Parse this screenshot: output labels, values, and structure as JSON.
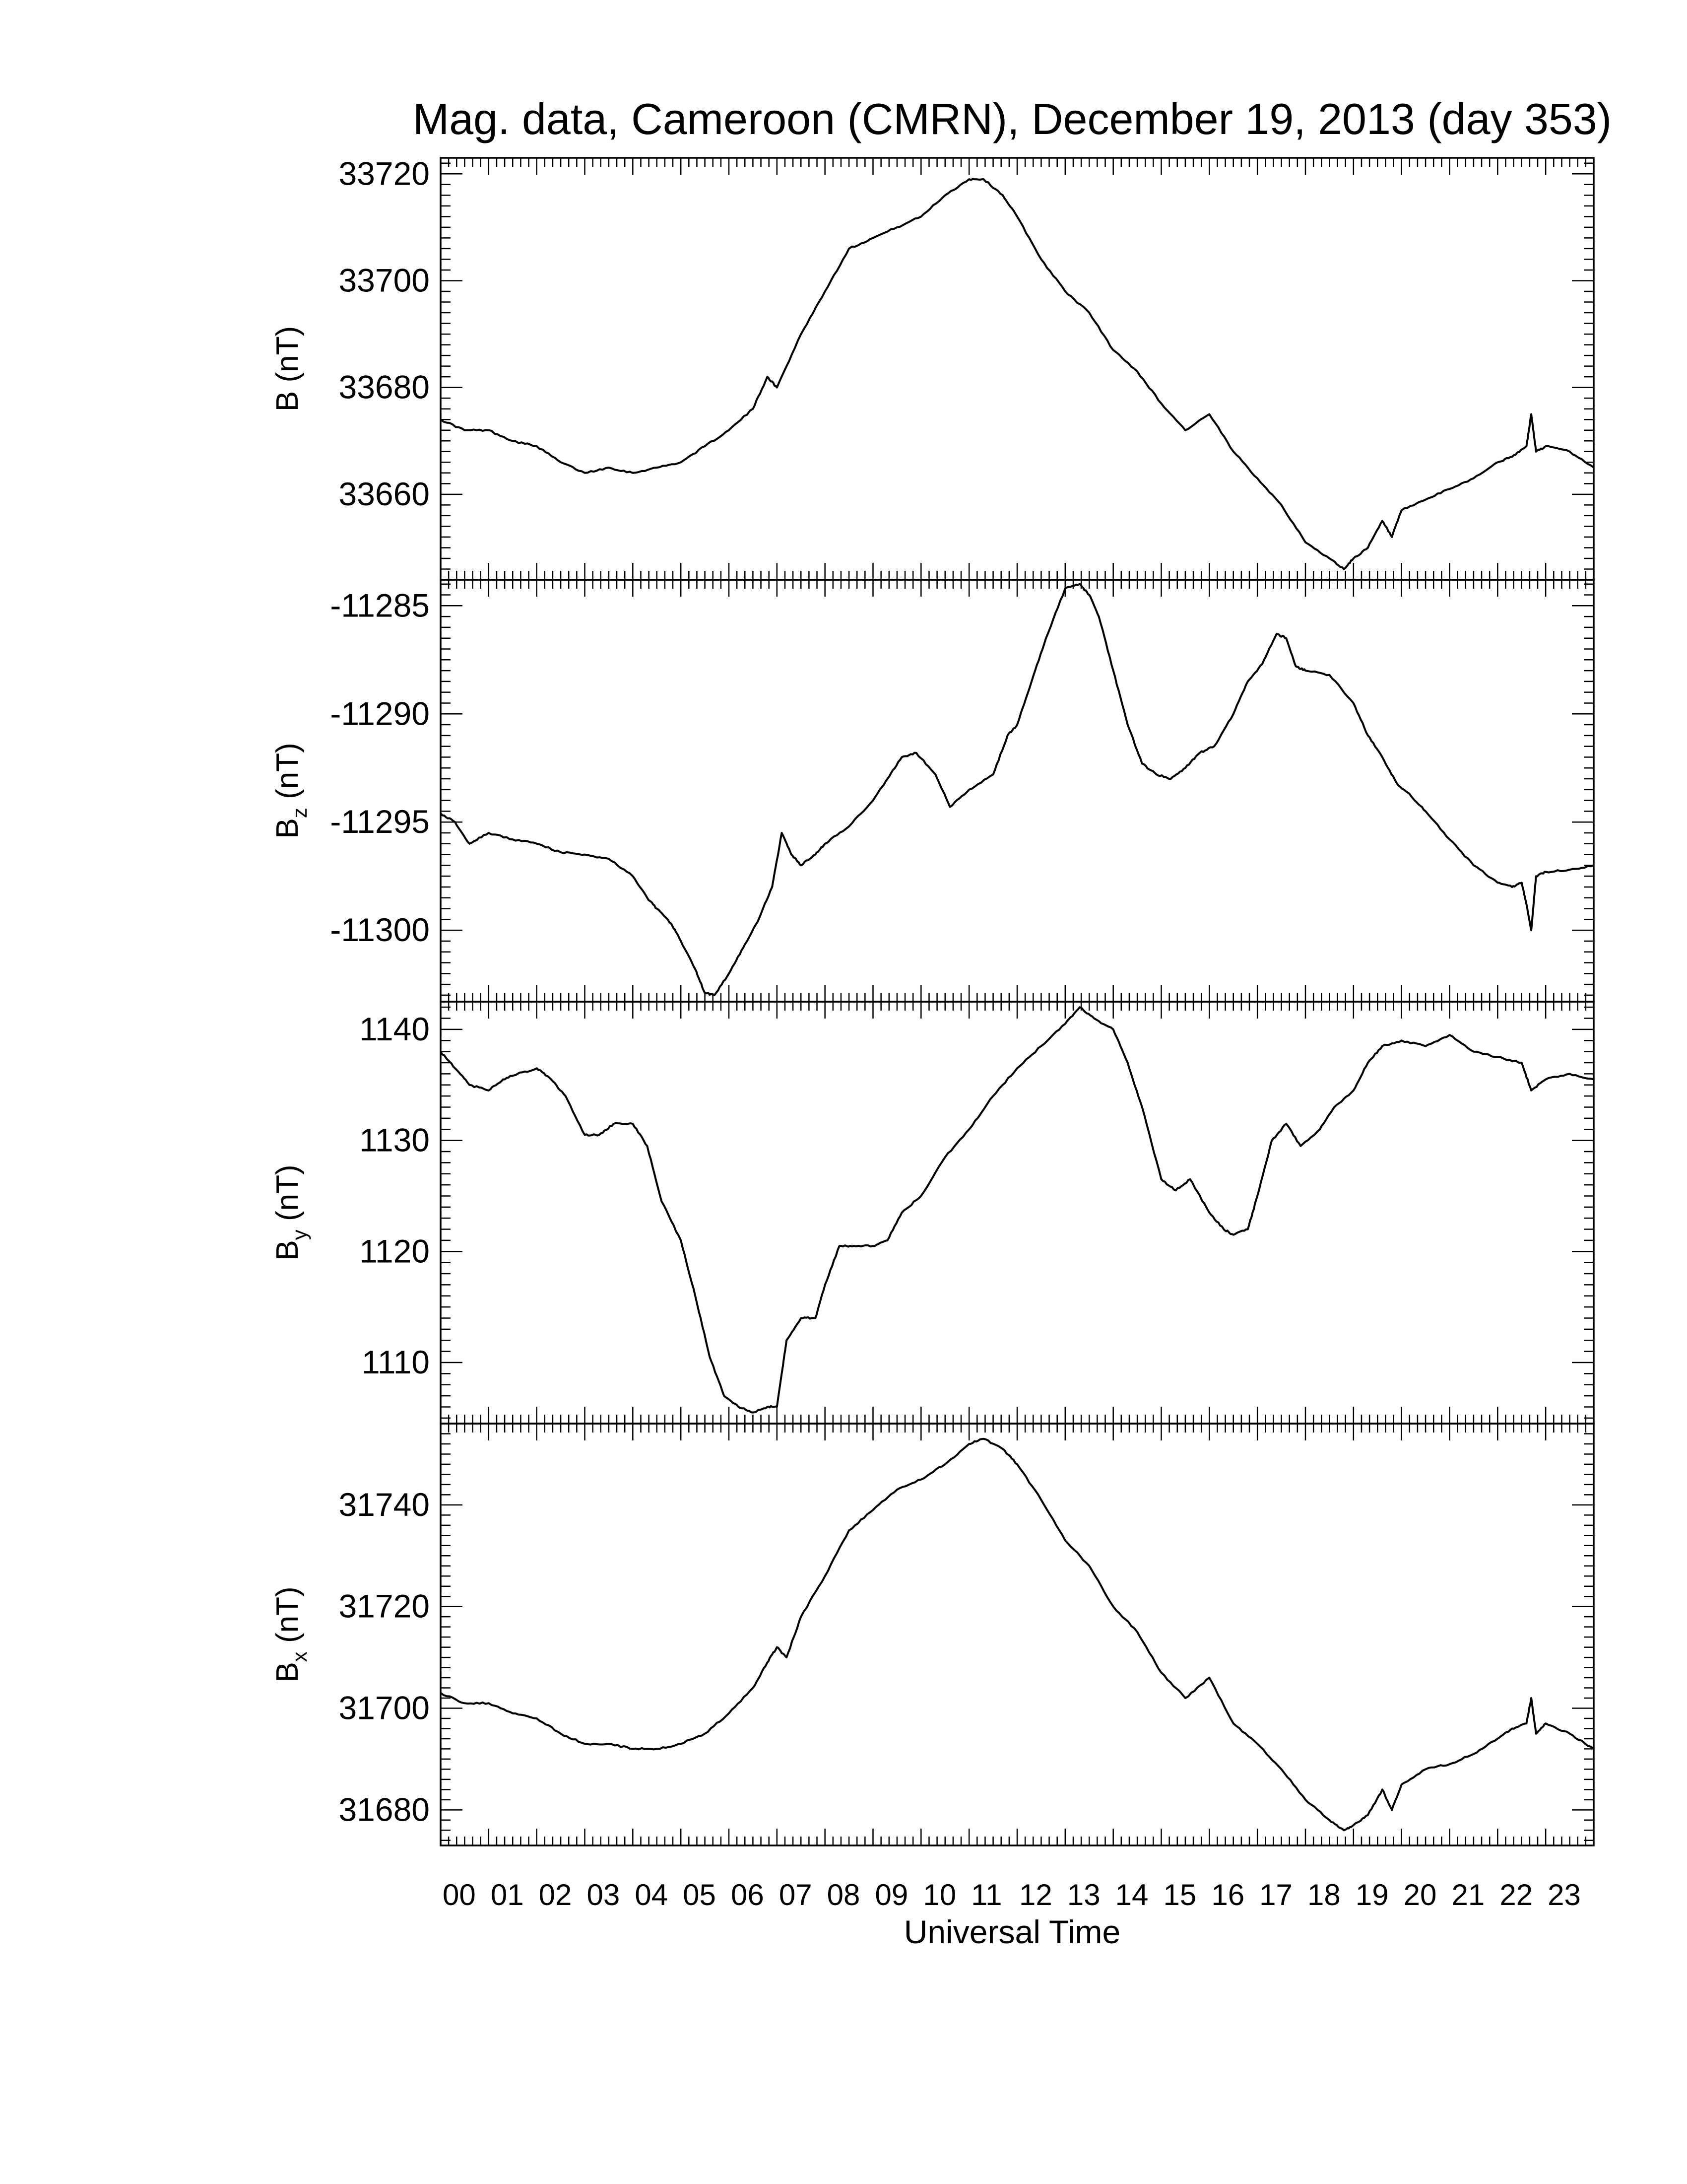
{
  "chart_data": {
    "type": "line",
    "title": "Mag. data, Cameroon (CMRN), December 19, 2013 (day 353)",
    "xlabel": "Universal Time",
    "xlim": [
      0,
      24
    ],
    "x_tick_labels": [
      "00",
      "01",
      "02",
      "03",
      "04",
      "05",
      "06",
      "07",
      "08",
      "09",
      "10",
      "11",
      "12",
      "13",
      "14",
      "15",
      "16",
      "17",
      "18",
      "19",
      "20",
      "21",
      "22",
      "23"
    ],
    "x_ticks": [
      0,
      1,
      2,
      3,
      4,
      5,
      6,
      7,
      8,
      9,
      10,
      11,
      12,
      13,
      14,
      15,
      16,
      17,
      18,
      19,
      20,
      21,
      22,
      23
    ],
    "panels": [
      {
        "id": "B",
        "ylabel_main": "B",
        "ylabel_sub": "",
        "ylabel_unit": " (nT)",
        "ylim": [
          33644,
          33723
        ],
        "yticks": [
          33660,
          33680,
          33700,
          33720
        ],
        "ytick_labels": [
          "33660",
          "33680",
          "33700",
          "33720"
        ],
        "x": [
          0,
          0.5,
          1,
          1.5,
          2,
          2.5,
          3,
          3.5,
          4,
          4.5,
          5,
          5.5,
          6,
          6.5,
          6.8,
          7,
          7.5,
          8,
          8.5,
          9,
          9.5,
          10,
          10.5,
          11,
          11.3,
          11.7,
          12,
          12.5,
          13,
          13.5,
          14,
          14.5,
          15,
          15.5,
          16,
          16.5,
          17,
          17.5,
          18,
          18.5,
          18.8,
          19,
          19.3,
          19.6,
          19.8,
          20,
          20.5,
          21,
          21.5,
          22,
          22.3,
          22.6,
          22.7,
          22.8,
          23,
          23.5,
          24
        ],
        "y": [
          33674,
          33672,
          33672,
          33670,
          33669,
          33666,
          33664,
          33665,
          33664,
          33665,
          33666,
          33669,
          33672,
          33676,
          33682,
          33680,
          33690,
          33698,
          33706,
          33708,
          33710,
          33712,
          33716,
          33719,
          33719,
          33716,
          33712,
          33704,
          33698,
          33694,
          33687,
          33683,
          33677,
          33672,
          33675,
          33668,
          33663,
          33658,
          33651,
          33648,
          33646,
          33648,
          33650,
          33655,
          33652,
          33657,
          33659,
          33661,
          33663,
          33666,
          33667,
          33669,
          33675,
          33668,
          33669,
          33668,
          33665
        ]
      },
      {
        "id": "Bz",
        "ylabel_main": "B",
        "ylabel_sub": "z",
        "ylabel_unit": " (nT)",
        "ylim": [
          -11303.3,
          -11283.8
        ],
        "yticks": [
          -11300,
          -11295,
          -11290,
          -11285
        ],
        "ytick_labels": [
          "-11300",
          "-11295",
          "-11290",
          "-11285"
        ],
        "x": [
          0,
          0.3,
          0.6,
          1,
          1.5,
          2,
          2.5,
          3,
          3.5,
          4,
          4.3,
          4.5,
          4.8,
          5,
          5.3,
          5.5,
          5.7,
          6,
          6.3,
          6.6,
          6.9,
          7.1,
          7.3,
          7.5,
          7.8,
          8,
          8.5,
          9,
          9.3,
          9.6,
          9.9,
          10.3,
          10.6,
          11,
          11.5,
          11.8,
          12,
          12.3,
          12.6,
          13,
          13.3,
          13.5,
          13.7,
          14,
          14.3,
          14.6,
          14.9,
          15.2,
          15.5,
          15.8,
          16.1,
          16.5,
          16.8,
          17.1,
          17.4,
          17.6,
          17.8,
          18,
          18.5,
          19,
          19.3,
          19.6,
          19.9,
          20.2,
          20.5,
          21,
          21.5,
          22,
          22.3,
          22.5,
          22.6,
          22.7,
          22.8,
          23,
          23.5,
          24
        ],
        "y": [
          -11294.6,
          -11295,
          -11296,
          -11295.5,
          -11295.8,
          -11296,
          -11296.4,
          -11296.5,
          -11296.7,
          -11297.5,
          -11298.5,
          -11299,
          -11299.7,
          -11300.5,
          -11301.8,
          -11302.9,
          -11303,
          -11302,
          -11300.8,
          -11299.6,
          -11298,
          -11295.5,
          -11296.5,
          -11297,
          -11296.5,
          -11296,
          -11295.2,
          -11294,
          -11293,
          -11292,
          -11291.8,
          -11292.8,
          -11294.3,
          -11293.5,
          -11292.8,
          -11291,
          -11290.5,
          -11288.5,
          -11286.5,
          -11284.2,
          -11284,
          -11284.5,
          -11285.5,
          -11288,
          -11290.5,
          -11292.3,
          -11292.8,
          -11293,
          -11292.5,
          -11291.8,
          -11291.5,
          -11290,
          -11288.5,
          -11287.7,
          -11286.3,
          -11286.5,
          -11287.8,
          -11288,
          -11288.2,
          -11289.5,
          -11291,
          -11292,
          -11293.2,
          -11293.8,
          -11294.5,
          -11295.8,
          -11297,
          -11297.8,
          -11298,
          -11297.8,
          -11298.8,
          -11300,
          -11297.5,
          -11297.3,
          -11297.2,
          -11297
        ]
      },
      {
        "id": "By",
        "ylabel_main": "B",
        "ylabel_sub": "y",
        "ylabel_unit": " (nT)",
        "ylim": [
          1104.5,
          1142.5
        ],
        "yticks": [
          1110,
          1120,
          1130,
          1140
        ],
        "ytick_labels": [
          "1110",
          "1120",
          "1130",
          "1140"
        ],
        "x": [
          0,
          0.3,
          0.6,
          1,
          1.3,
          1.6,
          2,
          2.3,
          2.6,
          3,
          3.3,
          3.6,
          4,
          4.3,
          4.6,
          5,
          5.3,
          5.6,
          5.9,
          6.2,
          6.5,
          6.8,
          7,
          7.2,
          7.5,
          7.8,
          8,
          8.3,
          8.6,
          9,
          9.3,
          9.6,
          10,
          10.5,
          11,
          11.5,
          12,
          12.5,
          13,
          13.3,
          13.6,
          14,
          14.3,
          14.6,
          15,
          15.3,
          15.6,
          16,
          16.3,
          16.5,
          16.8,
          17,
          17.3,
          17.6,
          17.9,
          18.3,
          18.6,
          19,
          19.3,
          19.6,
          20,
          20.5,
          21,
          21.5,
          22,
          22.5,
          22.7,
          23,
          23.5,
          24
        ],
        "y": [
          1138,
          1136.5,
          1135,
          1134.5,
          1135.5,
          1136,
          1136.5,
          1135.5,
          1134,
          1130.5,
          1130.5,
          1131.5,
          1131.5,
          1129.5,
          1124.5,
          1121,
          1116,
          1110.5,
          1107,
          1106,
          1105.5,
          1106,
          1106,
          1112,
          1114,
          1114,
          1117,
          1120.5,
          1120.5,
          1120.5,
          1121,
          1123.5,
          1125,
          1128.5,
          1131,
          1134,
          1136.5,
          1138.5,
          1140.5,
          1142,
          1141,
          1140,
          1137,
          1133,
          1126.5,
          1125.5,
          1126.5,
          1123.5,
          1122,
          1121.5,
          1122,
          1125,
          1130,
          1131.5,
          1129.5,
          1131,
          1133,
          1134.5,
          1137,
          1138.5,
          1139,
          1138.5,
          1139.5,
          1138,
          1137.5,
          1137,
          1134.5,
          1135.5,
          1136,
          1135.5
        ]
      },
      {
        "id": "Bx",
        "ylabel_main": "B",
        "ylabel_sub": "x",
        "ylabel_unit": " (nT)",
        "ylim": [
          31673,
          31756
        ],
        "yticks": [
          31680,
          31700,
          31720,
          31740
        ],
        "ytick_labels": [
          "31680",
          "31700",
          "31720",
          "31740"
        ],
        "x": [
          0,
          0.5,
          1,
          1.5,
          2,
          2.5,
          3,
          3.5,
          4,
          4.5,
          5,
          5.5,
          6,
          6.5,
          6.8,
          7,
          7.2,
          7.5,
          8,
          8.5,
          9,
          9.5,
          10,
          10.5,
          11,
          11.3,
          11.7,
          12,
          12.5,
          13,
          13.5,
          14,
          14.5,
          15,
          15.5,
          16,
          16.5,
          17,
          17.5,
          18,
          18.5,
          18.8,
          19,
          19.3,
          19.6,
          19.8,
          20,
          20.5,
          21,
          21.5,
          22,
          22.3,
          22.6,
          22.7,
          22.8,
          23,
          23.5,
          24
        ],
        "y": [
          31703,
          31701,
          31701,
          31699,
          31698,
          31695,
          31693,
          31693,
          31692,
          31692,
          31693,
          31695,
          31699,
          31704,
          31709,
          31712,
          31710,
          31718,
          31726,
          31735,
          31739,
          31743,
          31745,
          31748,
          31752,
          31753,
          31751,
          31748,
          31741,
          31733,
          31728,
          31720,
          31715,
          31707,
          31702,
          31706,
          31697,
          31693,
          31688,
          31682,
          31678,
          31676,
          31677,
          31679,
          31684,
          31680,
          31685,
          31688,
          31689,
          31691,
          31694,
          31696,
          31697,
          31702,
          31695,
          31697,
          31695,
          31692
        ]
      }
    ]
  }
}
